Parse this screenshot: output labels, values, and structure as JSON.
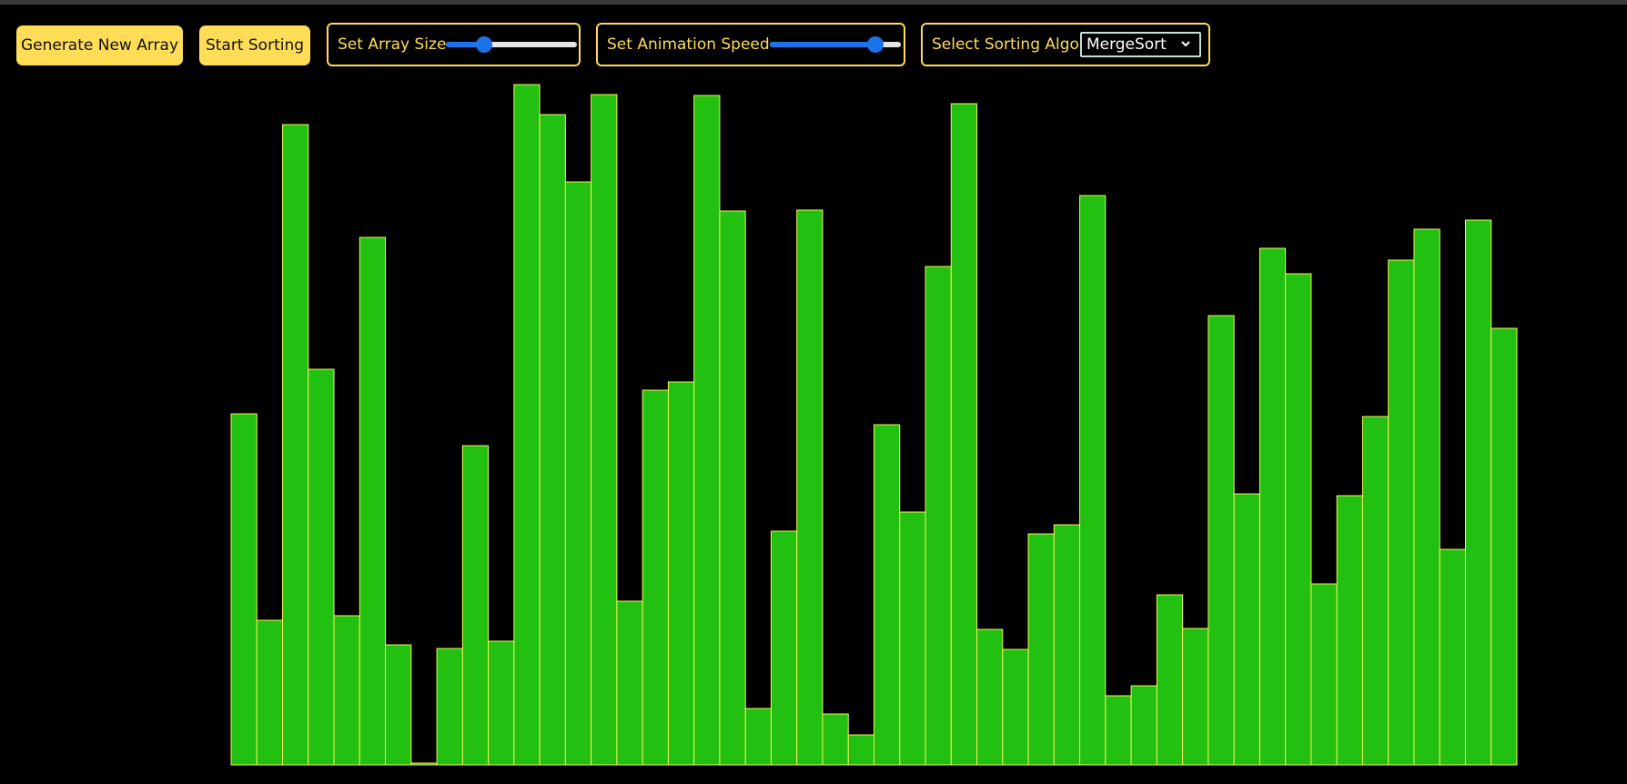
{
  "toolbar": {
    "generate_label": "Generate New Array",
    "start_label": "Start Sorting",
    "array_size": {
      "label": "Set Array Size",
      "value_fraction": 0.26
    },
    "animation_speed": {
      "label": "Set Animation Speed",
      "value_fraction": 0.85
    },
    "algorithm": {
      "label": "Select Sorting Algo",
      "selected": "MergeSort"
    }
  },
  "colors": {
    "background": "#000000",
    "button": "#ffdd57",
    "accent_text": "#ffdd57",
    "bar_fill": "#22c010",
    "bar_stroke": "#f2f25a",
    "slider": "#1a73e8"
  },
  "chart_data": {
    "type": "bar",
    "ylim": [
      0,
      750
    ],
    "values": [
      386,
      159,
      704,
      435,
      164,
      580,
      132,
      2,
      128,
      351,
      136,
      748,
      715,
      641,
      737,
      180,
      412,
      421,
      736,
      609,
      62,
      257,
      610,
      56,
      33,
      374,
      278,
      548,
      727,
      149,
      127,
      254,
      264,
      626,
      76,
      87,
      187,
      150,
      494,
      298,
      568,
      540,
      199,
      296,
      383,
      555,
      589,
      237,
      599,
      480
    ]
  }
}
